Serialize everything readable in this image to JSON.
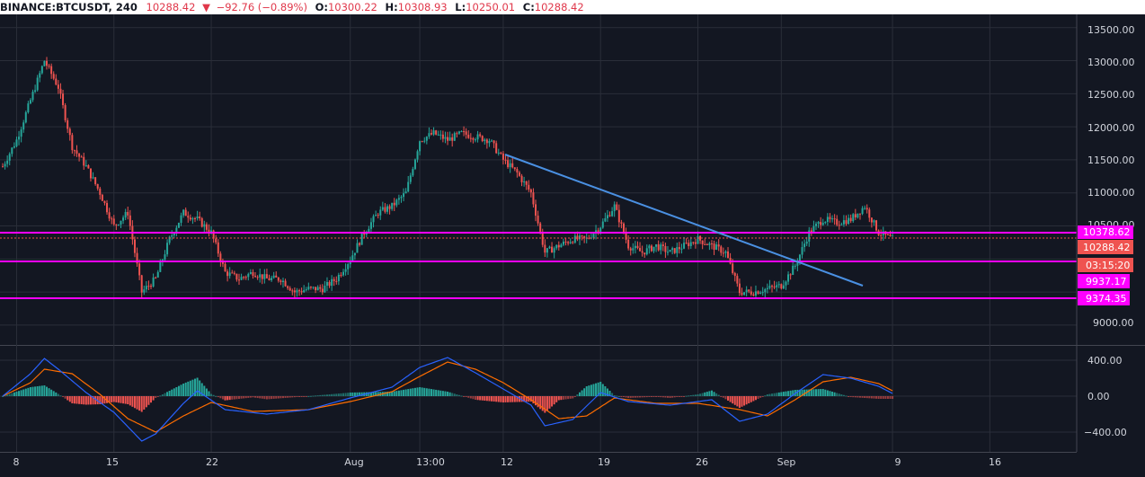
{
  "header": {
    "symbol": "BINANCE:BTCUSDT, 240",
    "last": "10288.42",
    "change_arrow": "▼",
    "change": "−92.76 (−0.89%)",
    "open_label": "O:",
    "open": "10300.22",
    "high_label": "H:",
    "high": "10308.93",
    "low_label": "L:",
    "low": "10250.01",
    "close_label": "C:",
    "close": "10288.42"
  },
  "colors": {
    "background": "#131722",
    "up": "#26a69a",
    "down": "#ef5350",
    "level_line": "#ff00ff",
    "trendline": "#4a90e2",
    "macd_line": "#2962ff",
    "signal_line": "#ff6d00",
    "grid": "#2a2e39",
    "axis_text": "#d1d4dc",
    "last_price_label": "#ef5350"
  },
  "price_axis": {
    "ticks": [
      "13500.00",
      "13000.00",
      "12500.00",
      "12000.00",
      "11500.00",
      "11000.00",
      "10500.00",
      "9000.00"
    ],
    "labels": {
      "level_1": "10378.62",
      "last_price": "10288.42",
      "countdown": "03:15:20",
      "level_2": "9937.17",
      "level_3": "9374.35"
    }
  },
  "macd_axis": {
    "ticks": [
      "400.00",
      "0.00",
      "−400.00"
    ]
  },
  "time_axis": {
    "ticks": [
      "8",
      "15",
      "22",
      "Aug",
      "13:00",
      "12",
      "19",
      "26",
      "Sep",
      "9",
      "16"
    ]
  },
  "chart_data": {
    "type": "candlestick",
    "symbol": "BINANCE:BTCUSDT",
    "interval": "240",
    "ylim": [
      8700,
      13700
    ],
    "horizontal_levels": [
      10378.62,
      9937.17,
      9374.35
    ],
    "last_price": 10288.42,
    "trendline": {
      "from": {
        "x": "Aug 12",
        "y": 11560
      },
      "to": {
        "x": "Sep 5",
        "y": 9580
      }
    },
    "close_anchors": [
      [
        "Jul 7",
        11400
      ],
      [
        "Jul 8",
        11800
      ],
      [
        "Jul 9",
        12400
      ],
      [
        "Jul 10",
        13000
      ],
      [
        "Jul 11",
        12600
      ],
      [
        "Jul 12",
        11700
      ],
      [
        "Jul 13",
        11400
      ],
      [
        "Jul 14",
        11000
      ],
      [
        "Jul 15",
        10500
      ],
      [
        "Jul 16",
        10700
      ],
      [
        "Jul 17",
        9500
      ],
      [
        "Jul 18",
        9700
      ],
      [
        "Jul 19",
        10300
      ],
      [
        "Jul 20",
        10700
      ],
      [
        "Jul 21",
        10600
      ],
      [
        "Jul 22",
        10400
      ],
      [
        "Jul 23",
        9800
      ],
      [
        "Jul 24",
        9700
      ],
      [
        "Jul 25",
        9800
      ],
      [
        "Jul 26",
        9700
      ],
      [
        "Jul 27",
        9700
      ],
      [
        "Jul 28",
        9500
      ],
      [
        "Jul 29",
        9550
      ],
      [
        "Jul 30",
        9550
      ],
      [
        "Jul 31",
        9700
      ],
      [
        "Aug 1",
        10000
      ],
      [
        "Aug 2",
        10400
      ],
      [
        "Aug 3",
        10700
      ],
      [
        "Aug 4",
        10800
      ],
      [
        "Aug 5",
        11000
      ],
      [
        "Aug 6",
        11800
      ],
      [
        "Aug 7",
        11900
      ],
      [
        "Aug 8",
        11800
      ],
      [
        "Aug 9",
        11900
      ],
      [
        "Aug 10",
        11850
      ],
      [
        "Aug 11",
        11800
      ],
      [
        "Aug 12",
        11500
      ],
      [
        "Aug 13",
        11300
      ],
      [
        "Aug 14",
        11000
      ],
      [
        "Aug 15",
        10100
      ],
      [
        "Aug 16",
        10200
      ],
      [
        "Aug 17",
        10300
      ],
      [
        "Aug 18",
        10300
      ],
      [
        "Aug 19",
        10500
      ],
      [
        "Aug 20",
        10800
      ],
      [
        "Aug 21",
        10200
      ],
      [
        "Aug 22",
        10100
      ],
      [
        "Aug 23",
        10200
      ],
      [
        "Aug 24",
        10100
      ],
      [
        "Aug 25",
        10200
      ],
      [
        "Aug 26",
        10300
      ],
      [
        "Aug 27",
        10200
      ],
      [
        "Aug 28",
        10100
      ],
      [
        "Aug 29",
        9500
      ],
      [
        "Aug 30",
        9500
      ],
      [
        "Aug 31",
        9550
      ],
      [
        "Sep 1",
        9600
      ],
      [
        "Sep 2",
        9900
      ],
      [
        "Sep 3",
        10400
      ],
      [
        "Sep 4",
        10600
      ],
      [
        "Sep 5",
        10550
      ],
      [
        "Sep 6",
        10600
      ],
      [
        "Sep 7",
        10800
      ],
      [
        "Sep 8",
        10400
      ],
      [
        "Sep 9",
        10300
      ]
    ],
    "macd": {
      "ylim": [
        -560,
        560
      ],
      "macd_anchors": [
        [
          "Jul 7",
          0
        ],
        [
          "Jul 9",
          250
        ],
        [
          "Jul 10",
          420
        ],
        [
          "Jul 11",
          300
        ],
        [
          "Jul 13",
          40
        ],
        [
          "Jul 15",
          -180
        ],
        [
          "Jul 17",
          -500
        ],
        [
          "Jul 18",
          -420
        ],
        [
          "Jul 20",
          -80
        ],
        [
          "Jul 21",
          60
        ],
        [
          "Jul 23",
          -150
        ],
        [
          "Jul 26",
          -200
        ],
        [
          "Jul 29",
          -150
        ],
        [
          "Aug 1",
          -20
        ],
        [
          "Aug 4",
          100
        ],
        [
          "Aug 6",
          320
        ],
        [
          "Aug 8",
          430
        ],
        [
          "Aug 10",
          260
        ],
        [
          "Aug 12",
          80
        ],
        [
          "Aug 14",
          -100
        ],
        [
          "Aug 15",
          -330
        ],
        [
          "Aug 17",
          -260
        ],
        [
          "Aug 19",
          40
        ],
        [
          "Aug 21",
          -60
        ],
        [
          "Aug 24",
          -100
        ],
        [
          "Aug 27",
          -40
        ],
        [
          "Aug 29",
          -280
        ],
        [
          "Aug 31",
          -200
        ],
        [
          "Sep 2",
          30
        ],
        [
          "Sep 4",
          240
        ],
        [
          "Sep 6",
          200
        ],
        [
          "Sep 8",
          110
        ],
        [
          "Sep 9",
          30
        ]
      ],
      "signal_anchors": [
        [
          "Jul 7",
          0
        ],
        [
          "Jul 9",
          150
        ],
        [
          "Jul 10",
          300
        ],
        [
          "Jul 12",
          250
        ],
        [
          "Jul 14",
          20
        ],
        [
          "Jul 16",
          -250
        ],
        [
          "Jul 18",
          -400
        ],
        [
          "Jul 20",
          -220
        ],
        [
          "Jul 22",
          -70
        ],
        [
          "Jul 25",
          -170
        ],
        [
          "Jul 29",
          -150
        ],
        [
          "Aug 1",
          -60
        ],
        [
          "Aug 4",
          50
        ],
        [
          "Aug 6",
          220
        ],
        [
          "Aug 8",
          380
        ],
        [
          "Aug 10",
          300
        ],
        [
          "Aug 12",
          150
        ],
        [
          "Aug 14",
          -40
        ],
        [
          "Aug 16",
          -250
        ],
        [
          "Aug 18",
          -220
        ],
        [
          "Aug 20",
          -20
        ],
        [
          "Aug 23",
          -80
        ],
        [
          "Aug 26",
          -80
        ],
        [
          "Aug 29",
          -150
        ],
        [
          "Aug 31",
          -220
        ],
        [
          "Sep 2",
          -40
        ],
        [
          "Sep 4",
          160
        ],
        [
          "Sep 6",
          210
        ],
        [
          "Sep 8",
          140
        ],
        [
          "Sep 9",
          60
        ]
      ]
    }
  }
}
